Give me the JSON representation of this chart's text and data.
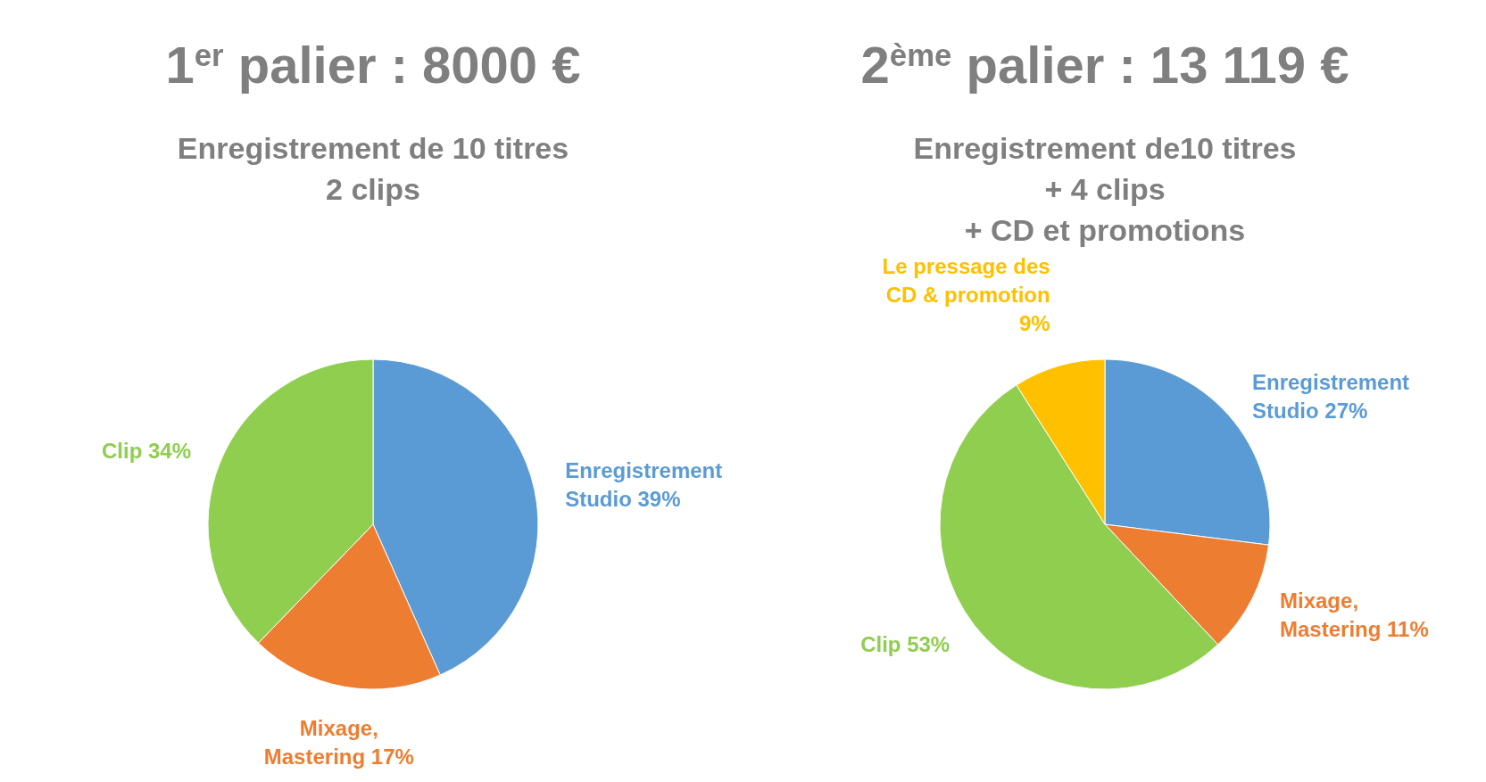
{
  "chart_data": [
    {
      "type": "pie",
      "title": "1$^{er}$ palier : 8000 €",
      "subtitle": "Enregistrement de 10 titres\n2 clips",
      "categories": [
        "Enregistrement Studio",
        "Mixage, Mastering",
        "Clip"
      ],
      "values": [
        39,
        17,
        34
      ],
      "value_labels": [
        "39%",
        "17%",
        "34%"
      ],
      "colors": [
        "#5b9bd5",
        "#ed7d31",
        "#8fce4f"
      ],
      "legend": false
    },
    {
      "type": "pie",
      "title": "2$^{ème}$ palier : 13 119 €",
      "subtitle": "Enregistrement de10 titres\n+ 4 clips\n+ CD et promotions",
      "categories": [
        "Enregistrement Studio",
        "Mixage, Mastering",
        "Clip",
        "Le pressage des CD  & promotion"
      ],
      "values": [
        27,
        11,
        53,
        9
      ],
      "value_labels": [
        "27%",
        "11%",
        "53%",
        "9%"
      ],
      "colors": [
        "#5b9bd5",
        "#ed7d31",
        "#8fce4f",
        "#ffc000"
      ],
      "legend": false
    }
  ]
}
